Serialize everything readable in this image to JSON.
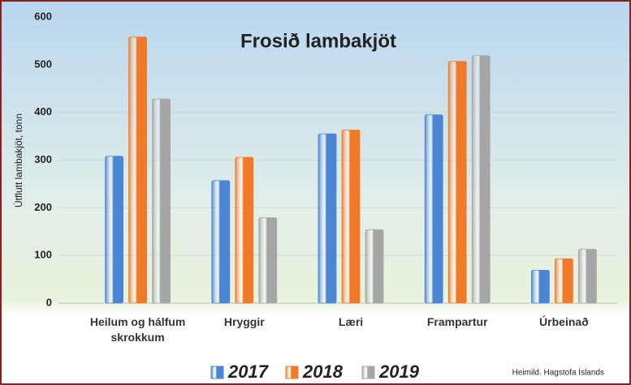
{
  "chart_data": {
    "type": "bar",
    "title": "Frosið lambakjöt",
    "y_label": "Útflutt lambakjöt, tonn",
    "source": "Heimild. Hagstofa Íslands",
    "categories": [
      "Heilum og hálfum skrokkum",
      "Hryggir",
      "Læri",
      "Frampartur",
      "Úrbeinað"
    ],
    "series": [
      {
        "name": "2017",
        "color": "#4a86d4",
        "values": [
          308,
          257,
          355,
          395,
          69
        ]
      },
      {
        "name": "2018",
        "color": "#f07a28",
        "values": [
          558,
          306,
          363,
          507,
          93
        ]
      },
      {
        "name": "2019",
        "color": "#a6a6a6",
        "values": [
          428,
          179,
          154,
          519,
          113
        ]
      }
    ],
    "ylim": [
      0,
      600
    ],
    "yticks": [
      0,
      100,
      200,
      300,
      400,
      500,
      600
    ],
    "grid": true,
    "legend": "bottom"
  }
}
